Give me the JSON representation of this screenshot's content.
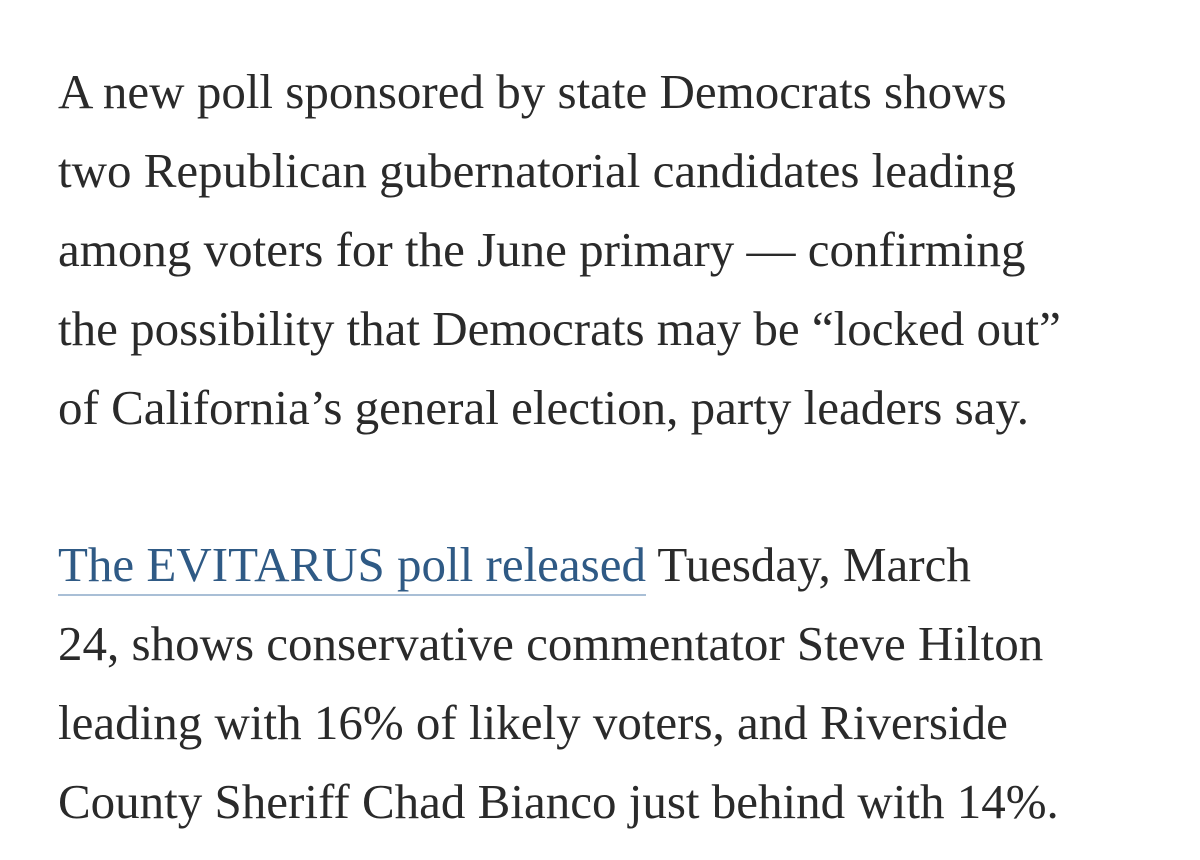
{
  "article": {
    "paragraph_1": {
      "lines": [
        "A new poll sponsored by state Democrats shows",
        "two Republican gubernatorial candidates leading",
        "among voters for the June primary — confirming",
        "the possibility that Democrats may be “locked out”",
        "of California’s general election, party leaders say."
      ]
    },
    "paragraph_2": {
      "link_text": "The EVITARUS poll released",
      "line1_rest": " Tuesday, March",
      "lines": [
        "24, shows conservative commentator Steve Hilton",
        "leading with 16% of likely voters, and Riverside",
        "County Sheriff Chad Bianco just behind with 14%."
      ]
    },
    "colors": {
      "text": "#2a2a2a",
      "link": "#2f5a85",
      "link_underline": "#a9bfd6",
      "background": "#ffffff"
    }
  }
}
